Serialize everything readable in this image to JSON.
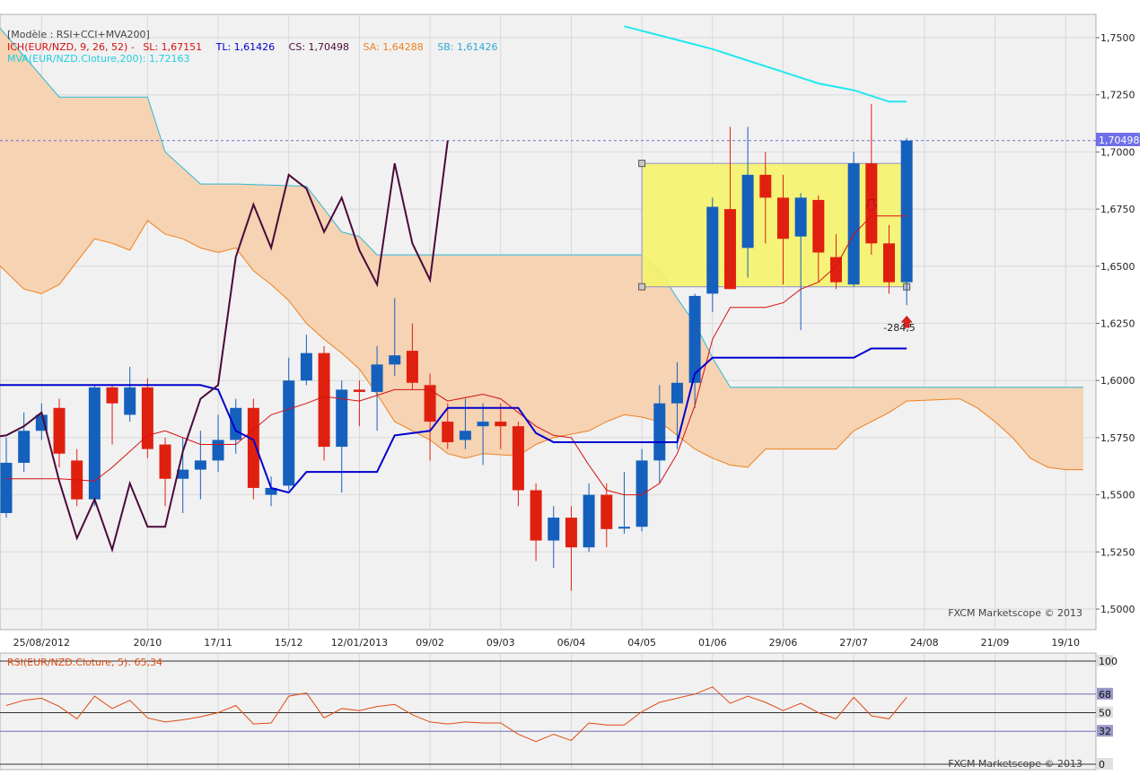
{
  "main_legend": {
    "line1": "[Modèle : RSI+CCI+MVA200]",
    "ich_label": "ICH(EUR/NZD, 9, 26, 52) -",
    "sl": "SL: 1,67151",
    "tl": "TL: 1,61426",
    "cs": "CS: 1,70498",
    "sa": "SA: 1,64288",
    "sb": "SB: 1,61426",
    "mva": "MVA(EUR/NZD.Cloture,200): 1,72163"
  },
  "rsi_legend": "RSI(EUR/NZD.Cloture, 5): 65,34",
  "watermark_main": "FXCM Marketscope © 2013",
  "watermark_rsi": "FXCM Marketscope © 2013",
  "current_price_tag": "1,70498",
  "annotation": "-284,5",
  "colors": {
    "bull": "#1560bd",
    "bear": "#e0200f",
    "tenkan": "#d81010",
    "kijun": "#0000d0",
    "chikou": "#4a0a3a",
    "senkou_a": "#f08020",
    "senkou_b": "#30b8d8",
    "cloud": "#f5d3b3",
    "mva": "#20e8f0",
    "rsi": "#e04a10",
    "box_fill": "#f5f36a",
    "box_stroke": "#9090c8"
  },
  "chart_data": [
    {
      "type": "candlestick",
      "symbol": "EUR/NZD",
      "ylim": [
        1.5,
        1.76
      ],
      "y_ticks": [
        "1,5000",
        "1,5250",
        "1,5500",
        "1,5750",
        "1,6000",
        "1,6250",
        "1,6500",
        "1,6750",
        "1,7000",
        "1,7250",
        "1,7500"
      ],
      "y_tick_values": [
        1.5,
        1.525,
        1.55,
        1.575,
        1.6,
        1.625,
        1.65,
        1.675,
        1.7,
        1.725,
        1.75
      ],
      "x_ticks": [
        "25/08/2012",
        "20/10",
        "17/11",
        "15/12",
        "12/01/2013",
        "09/02",
        "09/03",
        "06/04",
        "04/05",
        "01/06",
        "29/06",
        "27/07",
        "24/08",
        "21/09",
        "19/10"
      ],
      "x_tick_index": [
        2,
        8,
        12,
        16,
        20,
        24,
        28,
        32,
        36,
        40,
        44,
        48,
        52,
        56,
        60
      ],
      "n_slots": 62,
      "candles": [
        {
          "o": 1.542,
          "h": 1.575,
          "l": 1.54,
          "c": 1.564
        },
        {
          "o": 1.564,
          "h": 1.586,
          "l": 1.56,
          "c": 1.578
        },
        {
          "o": 1.578,
          "h": 1.59,
          "l": 1.574,
          "c": 1.585
        },
        {
          "o": 1.588,
          "h": 1.592,
          "l": 1.562,
          "c": 1.568
        },
        {
          "o": 1.565,
          "h": 1.57,
          "l": 1.545,
          "c": 1.548
        },
        {
          "o": 1.548,
          "h": 1.598,
          "l": 1.545,
          "c": 1.597
        },
        {
          "o": 1.597,
          "h": 1.598,
          "l": 1.572,
          "c": 1.59
        },
        {
          "o": 1.585,
          "h": 1.606,
          "l": 1.582,
          "c": 1.597
        },
        {
          "o": 1.597,
          "h": 1.601,
          "l": 1.566,
          "c": 1.57
        },
        {
          "o": 1.572,
          "h": 1.575,
          "l": 1.545,
          "c": 1.557
        },
        {
          "o": 1.557,
          "h": 1.575,
          "l": 1.542,
          "c": 1.561
        },
        {
          "o": 1.561,
          "h": 1.578,
          "l": 1.548,
          "c": 1.565
        },
        {
          "o": 1.565,
          "h": 1.585,
          "l": 1.56,
          "c": 1.574
        },
        {
          "o": 1.574,
          "h": 1.592,
          "l": 1.568,
          "c": 1.588
        },
        {
          "o": 1.588,
          "h": 1.592,
          "l": 1.548,
          "c": 1.553
        },
        {
          "o": 1.55,
          "h": 1.558,
          "l": 1.545,
          "c": 1.553
        },
        {
          "o": 1.554,
          "h": 1.61,
          "l": 1.552,
          "c": 1.6
        },
        {
          "o": 1.6,
          "h": 1.62,
          "l": 1.598,
          "c": 1.612
        },
        {
          "o": 1.612,
          "h": 1.615,
          "l": 1.565,
          "c": 1.571
        },
        {
          "o": 1.571,
          "h": 1.6,
          "l": 1.551,
          "c": 1.596
        },
        {
          "o": 1.596,
          "h": 1.6,
          "l": 1.58,
          "c": 1.595
        },
        {
          "o": 1.595,
          "h": 1.615,
          "l": 1.578,
          "c": 1.607
        },
        {
          "o": 1.607,
          "h": 1.636,
          "l": 1.602,
          "c": 1.611
        },
        {
          "o": 1.613,
          "h": 1.625,
          "l": 1.596,
          "c": 1.599
        },
        {
          "o": 1.598,
          "h": 1.603,
          "l": 1.565,
          "c": 1.582
        },
        {
          "o": 1.582,
          "h": 1.59,
          "l": 1.57,
          "c": 1.573
        },
        {
          "o": 1.574,
          "h": 1.592,
          "l": 1.57,
          "c": 1.578
        },
        {
          "o": 1.58,
          "h": 1.59,
          "l": 1.563,
          "c": 1.582
        },
        {
          "o": 1.582,
          "h": 1.59,
          "l": 1.57,
          "c": 1.58
        },
        {
          "o": 1.58,
          "h": 1.582,
          "l": 1.545,
          "c": 1.552
        },
        {
          "o": 1.552,
          "h": 1.555,
          "l": 1.521,
          "c": 1.53
        },
        {
          "o": 1.53,
          "h": 1.545,
          "l": 1.518,
          "c": 1.54
        },
        {
          "o": 1.54,
          "h": 1.545,
          "l": 1.508,
          "c": 1.527
        },
        {
          "o": 1.527,
          "h": 1.555,
          "l": 1.525,
          "c": 1.55
        },
        {
          "o": 1.55,
          "h": 1.555,
          "l": 1.527,
          "c": 1.535
        },
        {
          "o": 1.536,
          "h": 1.56,
          "l": 1.533,
          "c": 1.536
        },
        {
          "o": 1.536,
          "h": 1.57,
          "l": 1.534,
          "c": 1.565
        },
        {
          "o": 1.565,
          "h": 1.598,
          "l": 1.555,
          "c": 1.59
        },
        {
          "o": 1.59,
          "h": 1.608,
          "l": 1.57,
          "c": 1.599
        },
        {
          "o": 1.599,
          "h": 1.638,
          "l": 1.588,
          "c": 1.637
        },
        {
          "o": 1.638,
          "h": 1.68,
          "l": 1.63,
          "c": 1.676
        },
        {
          "o": 1.675,
          "h": 1.711,
          "l": 1.64,
          "c": 1.64
        },
        {
          "o": 1.658,
          "h": 1.711,
          "l": 1.645,
          "c": 1.69
        },
        {
          "o": 1.69,
          "h": 1.7,
          "l": 1.66,
          "c": 1.68
        },
        {
          "o": 1.68,
          "h": 1.69,
          "l": 1.642,
          "c": 1.662
        },
        {
          "o": 1.663,
          "h": 1.682,
          "l": 1.622,
          "c": 1.68
        },
        {
          "o": 1.679,
          "h": 1.681,
          "l": 1.643,
          "c": 1.656
        },
        {
          "o": 1.654,
          "h": 1.664,
          "l": 1.64,
          "c": 1.643
        },
        {
          "o": 1.642,
          "h": 1.7,
          "l": 1.641,
          "c": 1.695
        },
        {
          "o": 1.695,
          "h": 1.721,
          "l": 1.655,
          "c": 1.66
        },
        {
          "o": 1.66,
          "h": 1.668,
          "l": 1.638,
          "c": 1.643
        },
        {
          "o": 1.643,
          "h": 1.706,
          "l": 1.633,
          "c": 1.705
        }
      ],
      "tenkan_sen": [
        [
          0,
          1.557
        ],
        [
          3,
          1.557
        ],
        [
          5,
          1.556
        ],
        [
          6,
          1.562
        ],
        [
          8,
          1.576
        ],
        [
          9,
          1.578
        ],
        [
          11,
          1.572
        ],
        [
          13,
          1.572
        ],
        [
          15,
          1.585
        ],
        [
          17,
          1.59
        ],
        [
          18,
          1.593
        ],
        [
          20,
          1.591
        ],
        [
          22,
          1.596
        ],
        [
          24,
          1.596
        ],
        [
          25,
          1.591
        ],
        [
          27,
          1.594
        ],
        [
          28,
          1.592
        ],
        [
          29,
          1.586
        ],
        [
          30,
          1.58
        ],
        [
          31,
          1.576
        ],
        [
          32,
          1.575
        ],
        [
          33,
          1.563
        ],
        [
          34,
          1.552
        ],
        [
          35,
          1.55
        ],
        [
          36,
          1.55
        ],
        [
          37,
          1.555
        ],
        [
          38,
          1.568
        ],
        [
          39,
          1.589
        ],
        [
          40,
          1.618
        ],
        [
          41,
          1.632
        ],
        [
          43,
          1.632
        ],
        [
          44,
          1.634
        ],
        [
          45,
          1.64
        ],
        [
          46,
          1.643
        ],
        [
          47,
          1.65
        ],
        [
          48,
          1.664
        ],
        [
          49,
          1.672
        ],
        [
          51,
          1.672
        ]
      ],
      "kijun_sen": [
        [
          -1,
          1.598
        ],
        [
          11,
          1.598
        ],
        [
          12,
          1.596
        ],
        [
          13,
          1.578
        ],
        [
          14,
          1.574
        ],
        [
          15,
          1.553
        ],
        [
          16,
          1.551
        ],
        [
          17,
          1.56
        ],
        [
          21,
          1.56
        ],
        [
          22,
          1.576
        ],
        [
          24,
          1.578
        ],
        [
          25,
          1.588
        ],
        [
          29,
          1.588
        ],
        [
          30,
          1.577
        ],
        [
          31,
          1.573
        ],
        [
          38,
          1.573
        ],
        [
          39,
          1.603
        ],
        [
          40,
          1.61
        ],
        [
          48,
          1.61
        ],
        [
          49,
          1.614
        ],
        [
          51,
          1.614
        ]
      ],
      "chikou_span": [
        [
          -1,
          1.575
        ],
        [
          0,
          1.576
        ],
        [
          1,
          1.58
        ],
        [
          2,
          1.586
        ],
        [
          3,
          1.556
        ],
        [
          4,
          1.531
        ],
        [
          5,
          1.548
        ],
        [
          6,
          1.526
        ],
        [
          7,
          1.555
        ],
        [
          8,
          1.536
        ],
        [
          9,
          1.536
        ],
        [
          10,
          1.569
        ],
        [
          11,
          1.592
        ],
        [
          12,
          1.598
        ],
        [
          13,
          1.654
        ],
        [
          14,
          1.677
        ],
        [
          15,
          1.658
        ],
        [
          16,
          1.69
        ],
        [
          17,
          1.684
        ],
        [
          18,
          1.665
        ],
        [
          19,
          1.68
        ],
        [
          20,
          1.657
        ],
        [
          21,
          1.642
        ],
        [
          22,
          1.695
        ],
        [
          23,
          1.66
        ],
        [
          24,
          1.644
        ],
        [
          25,
          1.705
        ]
      ],
      "senkou_span_a": [
        [
          -1,
          1.655
        ],
        [
          1,
          1.64
        ],
        [
          2,
          1.638
        ],
        [
          3,
          1.642
        ],
        [
          5,
          1.662
        ],
        [
          6,
          1.66
        ],
        [
          7,
          1.657
        ],
        [
          8,
          1.67
        ],
        [
          9,
          1.664
        ],
        [
          10,
          1.662
        ],
        [
          11,
          1.658
        ],
        [
          12,
          1.656
        ],
        [
          13,
          1.658
        ],
        [
          14,
          1.648
        ],
        [
          15,
          1.642
        ],
        [
          16,
          1.635
        ],
        [
          17,
          1.625
        ],
        [
          18,
          1.618
        ],
        [
          19,
          1.612
        ],
        [
          20,
          1.605
        ],
        [
          21,
          1.594
        ],
        [
          22,
          1.582
        ],
        [
          23,
          1.578
        ],
        [
          24,
          1.574
        ],
        [
          25,
          1.568
        ],
        [
          26,
          1.566
        ],
        [
          27,
          1.568
        ],
        [
          29,
          1.567
        ],
        [
          30,
          1.572
        ],
        [
          31,
          1.575
        ],
        [
          33,
          1.578
        ],
        [
          34,
          1.582
        ],
        [
          35,
          1.585
        ],
        [
          36,
          1.584
        ],
        [
          37,
          1.582
        ],
        [
          38,
          1.576
        ],
        [
          39,
          1.57
        ],
        [
          40,
          1.566
        ],
        [
          41,
          1.563
        ],
        [
          42,
          1.562
        ],
        [
          43,
          1.57
        ],
        [
          47,
          1.57
        ],
        [
          48,
          1.578
        ],
        [
          49,
          1.582
        ],
        [
          50,
          1.586
        ],
        [
          51,
          1.591
        ],
        [
          54,
          1.592
        ],
        [
          55,
          1.588
        ],
        [
          56,
          1.582
        ],
        [
          57,
          1.575
        ],
        [
          58,
          1.566
        ],
        [
          59,
          1.562
        ],
        [
          60,
          1.561
        ],
        [
          61,
          1.561
        ]
      ],
      "senkou_span_b": [
        [
          -1,
          1.76
        ],
        [
          3,
          1.724
        ],
        [
          8,
          1.724
        ],
        [
          9,
          1.7
        ],
        [
          11,
          1.686
        ],
        [
          13,
          1.686
        ],
        [
          17,
          1.685
        ],
        [
          18,
          1.675
        ],
        [
          19,
          1.665
        ],
        [
          20,
          1.663
        ],
        [
          21,
          1.655
        ],
        [
          36,
          1.655
        ],
        [
          37,
          1.648
        ],
        [
          38,
          1.636
        ],
        [
          39,
          1.625
        ],
        [
          40,
          1.61
        ],
        [
          41,
          1.597
        ],
        [
          61,
          1.597
        ]
      ],
      "mva_200": [
        [
          35,
          1.755
        ],
        [
          38,
          1.749
        ],
        [
          40,
          1.745
        ],
        [
          42,
          1.74
        ],
        [
          44,
          1.735
        ],
        [
          46,
          1.73
        ],
        [
          48,
          1.727
        ],
        [
          50,
          1.722
        ],
        [
          51,
          1.722
        ]
      ],
      "current_price": 1.70498,
      "highlight_box": {
        "x_start_slot": 36,
        "x_end_slot": 51,
        "y_low": 1.641,
        "y_high": 1.695
      }
    },
    {
      "type": "line",
      "name": "RSI(EUR/NZD.Cloture, 5)",
      "ylim": [
        0,
        100
      ],
      "levels": [
        100,
        68,
        50,
        32,
        0
      ],
      "level_labels": [
        "100",
        "68",
        "50",
        "32",
        "0"
      ],
      "values": [
        [
          0,
          57
        ],
        [
          1,
          62
        ],
        [
          2,
          64
        ],
        [
          3,
          56
        ],
        [
          4,
          44
        ],
        [
          5,
          66
        ],
        [
          6,
          54
        ],
        [
          7,
          62
        ],
        [
          8,
          45
        ],
        [
          9,
          41
        ],
        [
          10,
          43
        ],
        [
          11,
          46
        ],
        [
          12,
          50
        ],
        [
          13,
          57
        ],
        [
          14,
          39
        ],
        [
          15,
          40
        ],
        [
          16,
          66
        ],
        [
          17,
          69
        ],
        [
          18,
          45
        ],
        [
          19,
          54
        ],
        [
          20,
          52
        ],
        [
          21,
          56
        ],
        [
          22,
          58
        ],
        [
          23,
          48
        ],
        [
          24,
          41
        ],
        [
          25,
          39
        ],
        [
          26,
          41
        ],
        [
          27,
          40
        ],
        [
          28,
          40
        ],
        [
          29,
          29
        ],
        [
          30,
          22
        ],
        [
          31,
          29
        ],
        [
          32,
          23
        ],
        [
          33,
          40
        ],
        [
          34,
          38
        ],
        [
          35,
          38
        ],
        [
          36,
          51
        ],
        [
          37,
          60
        ],
        [
          38,
          64
        ],
        [
          39,
          68
        ],
        [
          40,
          75
        ],
        [
          41,
          59
        ],
        [
          42,
          66
        ],
        [
          43,
          60
        ],
        [
          44,
          52
        ],
        [
          45,
          59
        ],
        [
          46,
          50
        ],
        [
          47,
          44
        ],
        [
          48,
          65
        ],
        [
          49,
          47
        ],
        [
          50,
          44
        ],
        [
          51,
          65
        ]
      ]
    }
  ]
}
